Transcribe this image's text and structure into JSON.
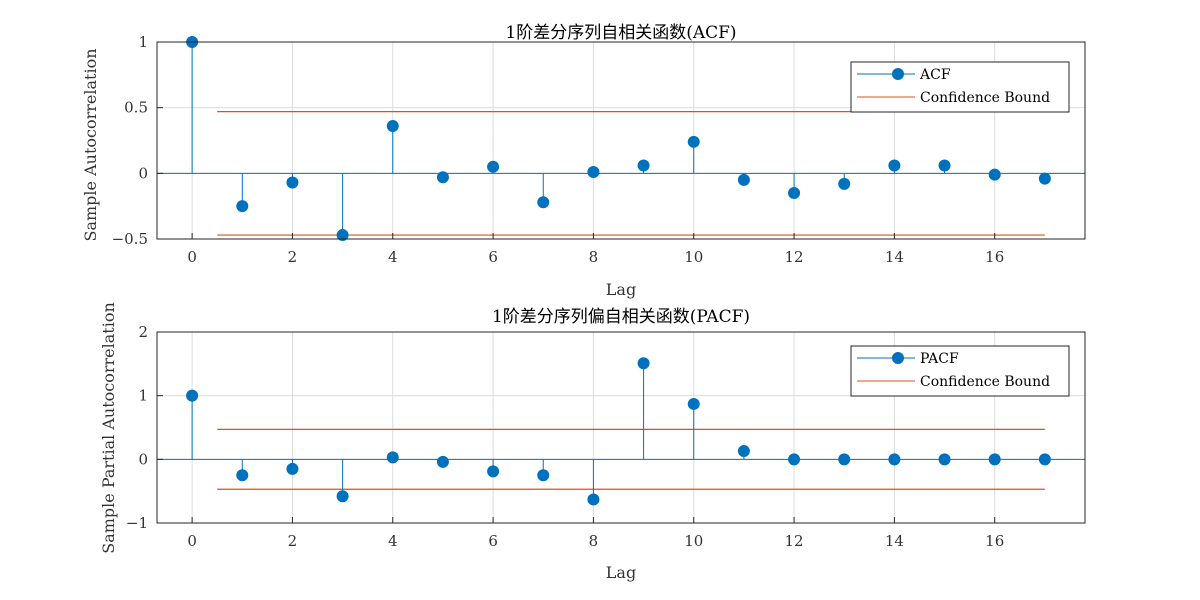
{
  "colors": {
    "stem": "#0072BD",
    "bound": "#D95319",
    "grid": "#dcdcdc",
    "axis": "#262626"
  },
  "chart_data": [
    {
      "type": "stem",
      "title": "1阶差分序列自相关函数(ACF)",
      "xlabel": "Lag",
      "ylabel": "Sample Autocorrelation",
      "xlim": [
        -0.7,
        17.8
      ],
      "ylim": [
        -0.5,
        1
      ],
      "xticks": [
        0,
        2,
        4,
        6,
        8,
        10,
        12,
        14,
        16
      ],
      "xtick_labels": [
        "0",
        "2",
        "4",
        "6",
        "8",
        "10",
        "12",
        "14",
        "16"
      ],
      "yticks": [
        -0.5,
        0,
        0.5,
        1
      ],
      "ytick_labels": [
        "−0.5",
        "0",
        "0.5",
        "1"
      ],
      "grid": true,
      "legend_position": "top-right",
      "x": [
        0,
        1,
        2,
        3,
        4,
        5,
        6,
        7,
        8,
        9,
        10,
        11,
        12,
        13,
        14,
        15,
        16,
        17
      ],
      "values": [
        1,
        -0.25,
        -0.07,
        -0.47,
        0.36,
        -0.03,
        0.05,
        -0.22,
        0.01,
        0.06,
        0.24,
        -0.05,
        -0.15,
        -0.08,
        0.06,
        0.06,
        -0.01,
        -0.04
      ],
      "confidence_bound": 0.47,
      "confidence_x_range": [
        0.5,
        17
      ],
      "legend": [
        "ACF",
        "Confidence Bound"
      ]
    },
    {
      "type": "stem",
      "title": "1阶差分序列偏自相关函数(PACF)",
      "xlabel": "Lag",
      "ylabel": "Sample Partial Autocorrelation",
      "xlim": [
        -0.7,
        17.8
      ],
      "ylim": [
        -1,
        2
      ],
      "xticks": [
        0,
        2,
        4,
        6,
        8,
        10,
        12,
        14,
        16
      ],
      "xtick_labels": [
        "0",
        "2",
        "4",
        "6",
        "8",
        "10",
        "12",
        "14",
        "16"
      ],
      "yticks": [
        -1,
        0,
        1,
        2
      ],
      "ytick_labels": [
        "−1",
        "0",
        "1",
        "2"
      ],
      "grid": true,
      "legend_position": "top-right",
      "x": [
        0,
        1,
        2,
        3,
        4,
        5,
        6,
        7,
        8,
        9,
        10,
        11,
        12,
        13,
        14,
        15,
        16,
        17
      ],
      "values": [
        1,
        -0.25,
        -0.15,
        -0.58,
        0.03,
        -0.04,
        -0.19,
        -0.25,
        -0.63,
        1.51,
        0.87,
        0.13,
        0.0,
        0.0,
        0.0,
        0.0,
        0.0,
        0.0
      ],
      "confidence_bound": 0.47,
      "confidence_x_range": [
        0.5,
        17
      ],
      "legend": [
        "PACF",
        "Confidence Bound"
      ]
    }
  ]
}
